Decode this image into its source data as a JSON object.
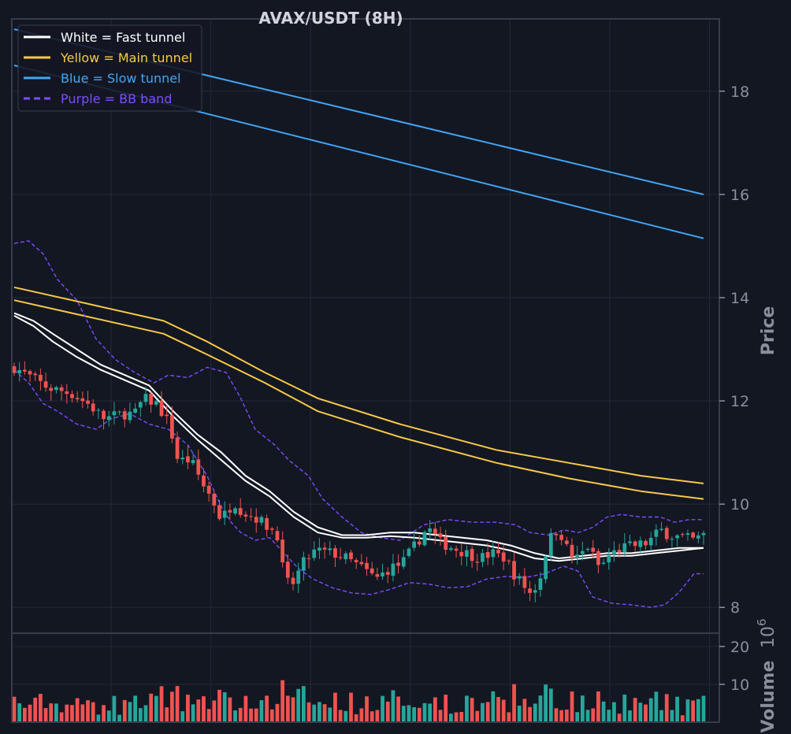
{
  "chart_data": {
    "type": "candlestick",
    "title": "AVAX/USDT (8H)",
    "ylabel": "Price",
    "volume_label": "Volume",
    "volume_exponent": "6",
    "ylim": [
      7.5,
      19.4
    ],
    "yticks": [
      8,
      10,
      12,
      14,
      16,
      18
    ],
    "volume_ylim": [
      0,
      23.5
    ],
    "volume_ticks": [
      10,
      20
    ],
    "legend_position": "top-left",
    "legend": [
      {
        "label": "White = Fast tunnel",
        "color": "#ffffff",
        "dashed": false
      },
      {
        "label": "Yellow = Main tunnel",
        "color": "#f7c948",
        "dashed": false
      },
      {
        "label": "Blue = Slow tunnel",
        "color": "#42a5f5",
        "dashed": false
      },
      {
        "label": "Purple = BB band",
        "color": "#7c4dff",
        "dashed": true
      }
    ],
    "colors": {
      "background": "#131722",
      "grid": "#252a36",
      "up": "#26a69a",
      "down": "#ef5350",
      "frame": "#363c4a"
    },
    "candle_count": 132,
    "close_anchors": [
      [
        0,
        12.65
      ],
      [
        4,
        12.45
      ],
      [
        8,
        12.25
      ],
      [
        13,
        12.15
      ],
      [
        17,
        11.95
      ],
      [
        21,
        11.65
      ],
      [
        25,
        11.75
      ],
      [
        28,
        11.75
      ],
      [
        30,
        12.05
      ],
      [
        33,
        11.95
      ],
      [
        36,
        11.55
      ],
      [
        38,
        10.85
      ],
      [
        41,
        10.85
      ],
      [
        44,
        10.35
      ],
      [
        46,
        10.1
      ],
      [
        48,
        9.7
      ],
      [
        51,
        10.05
      ],
      [
        53,
        9.85
      ],
      [
        56,
        9.75
      ],
      [
        59,
        9.55
      ],
      [
        61,
        9.45
      ],
      [
        62,
        8.85
      ],
      [
        64,
        8.35
      ],
      [
        67,
        8.85
      ],
      [
        70,
        9.1
      ],
      [
        74,
        9.05
      ],
      [
        77,
        8.95
      ],
      [
        81,
        8.75
      ],
      [
        84,
        8.55
      ],
      [
        87,
        8.75
      ],
      [
        90,
        8.85
      ],
      [
        93,
        9.2
      ],
      [
        96,
        9.55
      ],
      [
        99,
        9.25
      ],
      [
        102,
        9.15
      ],
      [
        105,
        9.05
      ],
      [
        108,
        8.95
      ],
      [
        111,
        9.05
      ],
      [
        114,
        8.95
      ],
      [
        116,
        8.65
      ],
      [
        119,
        8.35
      ],
      [
        120,
        8.25
      ],
      [
        122,
        8.55
      ],
      [
        124,
        9.3
      ],
      [
        126,
        9.5
      ],
      [
        127,
        9.4
      ],
      [
        129,
        9.0
      ],
      [
        131,
        8.95
      ],
      [
        133,
        9.2
      ],
      [
        136,
        8.75
      ],
      [
        138,
        9.0
      ],
      [
        141,
        9.15
      ],
      [
        144,
        9.2
      ],
      [
        147,
        9.25
      ],
      [
        150,
        9.5
      ],
      [
        152,
        9.4
      ],
      [
        155,
        9.35
      ],
      [
        158,
        9.3
      ],
      [
        160,
        9.4
      ]
    ],
    "fast_tunnel_upper": [
      [
        0,
        13.7
      ],
      [
        4,
        13.55
      ],
      [
        8,
        13.3
      ],
      [
        13,
        13.0
      ],
      [
        18,
        12.7
      ],
      [
        23,
        12.5
      ],
      [
        28,
        12.3
      ],
      [
        33,
        11.8
      ],
      [
        38,
        11.35
      ],
      [
        43,
        11.0
      ],
      [
        48,
        10.55
      ],
      [
        53,
        10.25
      ],
      [
        58,
        9.85
      ],
      [
        63,
        9.55
      ],
      [
        68,
        9.4
      ],
      [
        73,
        9.4
      ],
      [
        78,
        9.45
      ],
      [
        83,
        9.45
      ],
      [
        88,
        9.4
      ],
      [
        93,
        9.35
      ],
      [
        98,
        9.3
      ],
      [
        103,
        9.2
      ],
      [
        108,
        9.05
      ],
      [
        113,
        8.95
      ],
      [
        118,
        9.0
      ],
      [
        123,
        9.05
      ],
      [
        128,
        9.05
      ],
      [
        133,
        9.1
      ],
      [
        138,
        9.15
      ],
      [
        143,
        9.15
      ]
    ],
    "fast_tunnel_lower": [
      [
        0,
        13.65
      ],
      [
        4,
        13.45
      ],
      [
        8,
        13.15
      ],
      [
        13,
        12.85
      ],
      [
        18,
        12.6
      ],
      [
        23,
        12.4
      ],
      [
        28,
        12.2
      ],
      [
        33,
        11.7
      ],
      [
        38,
        11.25
      ],
      [
        43,
        10.85
      ],
      [
        48,
        10.45
      ],
      [
        53,
        10.15
      ],
      [
        58,
        9.75
      ],
      [
        63,
        9.45
      ],
      [
        68,
        9.35
      ],
      [
        73,
        9.35
      ],
      [
        78,
        9.38
      ],
      [
        83,
        9.35
      ],
      [
        88,
        9.3
      ],
      [
        93,
        9.25
      ],
      [
        98,
        9.2
      ],
      [
        103,
        9.1
      ],
      [
        108,
        8.95
      ],
      [
        113,
        8.9
      ],
      [
        118,
        8.95
      ],
      [
        123,
        9.0
      ],
      [
        128,
        9.0
      ],
      [
        133,
        9.05
      ],
      [
        138,
        9.1
      ],
      [
        143,
        9.15
      ]
    ],
    "main_tunnel_upper": [
      [
        0,
        14.2
      ],
      [
        12,
        13.95
      ],
      [
        31,
        13.55
      ],
      [
        40,
        13.15
      ],
      [
        52,
        12.55
      ],
      [
        63,
        12.05
      ],
      [
        80,
        11.55
      ],
      [
        100,
        11.05
      ],
      [
        115,
        10.8
      ],
      [
        130,
        10.55
      ],
      [
        143,
        10.4
      ]
    ],
    "main_tunnel_lower": [
      [
        0,
        13.95
      ],
      [
        12,
        13.7
      ],
      [
        31,
        13.3
      ],
      [
        40,
        12.9
      ],
      [
        52,
        12.35
      ],
      [
        63,
        11.8
      ],
      [
        80,
        11.3
      ],
      [
        100,
        10.8
      ],
      [
        115,
        10.5
      ],
      [
        130,
        10.25
      ],
      [
        143,
        10.1
      ]
    ],
    "slow_tunnel_upper": [
      [
        0,
        19.2
      ],
      [
        143,
        16.0
      ]
    ],
    "slow_tunnel_lower": [
      [
        0,
        18.5
      ],
      [
        143,
        15.15
      ]
    ],
    "bb_upper": [
      [
        0,
        15.05
      ],
      [
        3,
        15.1
      ],
      [
        6,
        14.85
      ],
      [
        9,
        14.35
      ],
      [
        13,
        13.95
      ],
      [
        17,
        13.2
      ],
      [
        21,
        12.8
      ],
      [
        25,
        12.55
      ],
      [
        29,
        12.35
      ],
      [
        32,
        12.5
      ],
      [
        36,
        12.45
      ],
      [
        40,
        12.65
      ],
      [
        44,
        12.55
      ],
      [
        47,
        12.05
      ],
      [
        50,
        11.45
      ],
      [
        54,
        11.15
      ],
      [
        57,
        10.85
      ],
      [
        61,
        10.55
      ],
      [
        64,
        10.1
      ],
      [
        68,
        9.75
      ],
      [
        72,
        9.45
      ],
      [
        76,
        9.35
      ],
      [
        80,
        9.3
      ],
      [
        85,
        9.6
      ],
      [
        90,
        9.7
      ],
      [
        95,
        9.65
      ],
      [
        100,
        9.65
      ],
      [
        104,
        9.6
      ],
      [
        107,
        9.45
      ],
      [
        111,
        9.4
      ],
      [
        114,
        9.5
      ],
      [
        117,
        9.45
      ],
      [
        120,
        9.55
      ],
      [
        123,
        9.75
      ],
      [
        126,
        9.8
      ],
      [
        130,
        9.75
      ],
      [
        134,
        9.75
      ],
      [
        137,
        9.65
      ],
      [
        140,
        9.7
      ],
      [
        143,
        9.7
      ]
    ],
    "bb_lower": [
      [
        0,
        12.6
      ],
      [
        3,
        12.35
      ],
      [
        6,
        11.95
      ],
      [
        9,
        11.8
      ],
      [
        13,
        11.55
      ],
      [
        17,
        11.45
      ],
      [
        20,
        11.65
      ],
      [
        24,
        11.75
      ],
      [
        28,
        11.55
      ],
      [
        32,
        11.45
      ],
      [
        36,
        11.15
      ],
      [
        40,
        10.55
      ],
      [
        43,
        9.95
      ],
      [
        45,
        9.65
      ],
      [
        47,
        9.45
      ],
      [
        50,
        9.3
      ],
      [
        53,
        9.35
      ],
      [
        56,
        9.05
      ],
      [
        59,
        8.75
      ],
      [
        62,
        8.55
      ],
      [
        66,
        8.38
      ],
      [
        70,
        8.28
      ],
      [
        74,
        8.25
      ],
      [
        78,
        8.35
      ],
      [
        82,
        8.48
      ],
      [
        86,
        8.45
      ],
      [
        90,
        8.38
      ],
      [
        94,
        8.4
      ],
      [
        98,
        8.55
      ],
      [
        102,
        8.6
      ],
      [
        106,
        8.58
      ],
      [
        110,
        8.65
      ],
      [
        114,
        8.8
      ],
      [
        117,
        8.7
      ],
      [
        120,
        8.2
      ],
      [
        124,
        8.08
      ],
      [
        128,
        8.05
      ],
      [
        132,
        8.0
      ],
      [
        135,
        8.05
      ],
      [
        138,
        8.3
      ],
      [
        141,
        8.65
      ],
      [
        143,
        8.65
      ]
    ]
  }
}
